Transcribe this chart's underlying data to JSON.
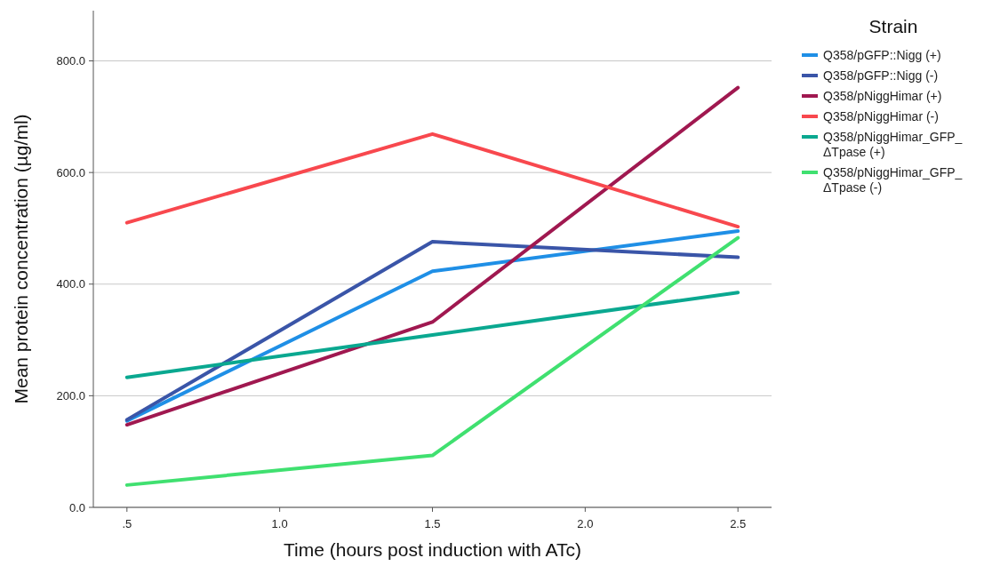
{
  "chart_data": {
    "type": "line",
    "xlabel": "Time (hours post induction with ATc)",
    "ylabel": "Mean protein concentration (µg/ml)",
    "legend_title": "Strain",
    "legend": "right",
    "grid": "y",
    "line_style": "solid",
    "marker": "none",
    "x": [
      0.5,
      1.5,
      2.5
    ],
    "xlim": [
      0.39,
      2.61
    ],
    "xticks": [
      {
        "value": 0.5,
        "label": ".5"
      },
      {
        "value": 1,
        "label": "1.0"
      },
      {
        "value": 1.5,
        "label": "1.5"
      },
      {
        "value": 2,
        "label": "2.0"
      },
      {
        "value": 2.5,
        "label": "2.5"
      }
    ],
    "ylim": [
      0,
      890
    ],
    "yticks": [
      {
        "value": 0,
        "label": "0.0"
      },
      {
        "value": 200,
        "label": "200.0"
      },
      {
        "value": 400,
        "label": "400.0"
      },
      {
        "value": 600,
        "label": "600.0"
      },
      {
        "value": 800,
        "label": "800.0"
      }
    ],
    "series": [
      {
        "name": "Q358/pGFP::Nigg (+)",
        "color": "#1f8fe6",
        "values": [
          155,
          423,
          495
        ]
      },
      {
        "name": "Q358/pGFP::Nigg (-)",
        "color": "#3a55a8",
        "values": [
          157,
          476,
          448
        ]
      },
      {
        "name": "Q358/pNiggHimar (+)",
        "color": "#a01850",
        "values": [
          148,
          332,
          752
        ]
      },
      {
        "name": "Q358/pNiggHimar (-)",
        "color": "#f8484e",
        "values": [
          510,
          669,
          503
        ]
      },
      {
        "name": "Q358/pNiggHimar_GFP_ΔTpase (+)",
        "color": "#0aa890",
        "values": [
          233,
          309,
          385
        ]
      },
      {
        "name": "Q358/pNiggHimar_GFP_ΔTpase (-)",
        "color": "#40e070",
        "values": [
          40,
          93,
          483
        ]
      }
    ]
  }
}
